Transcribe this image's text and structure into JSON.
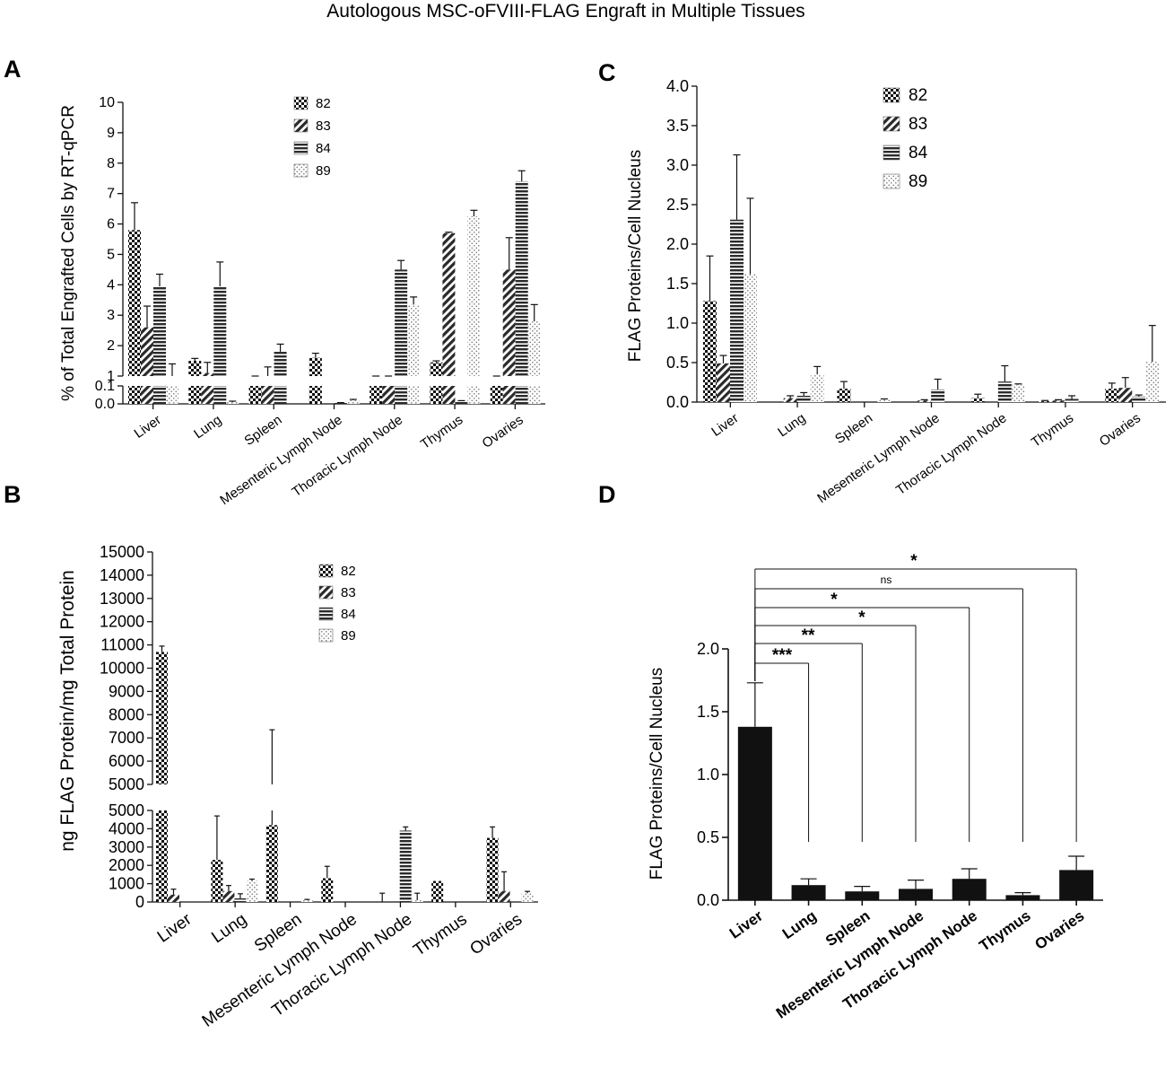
{
  "figure_title": "Autologous MSC-oFVIII-FLAG Engraft  in Multiple Tissues",
  "panel_labels": [
    "A",
    "B",
    "C",
    "D"
  ],
  "colors": {
    "ink": "#111111",
    "background": "#ffffff"
  },
  "chart_data": [
    {
      "panel": "A",
      "type": "bar",
      "ylabel": "% of Total Engrafted Cells by RT-qPCR",
      "categories": [
        "Liver",
        "Lung",
        "Spleen",
        "Mesenteric Lymph Node",
        "Thoracic Lymph Node",
        "Thymus",
        "Ovaries"
      ],
      "legend": [
        "82",
        "83",
        "84",
        "89"
      ],
      "yticks_upper": [
        "1",
        "2",
        "3",
        "4",
        "5",
        "6",
        "7",
        "8",
        "9",
        "10"
      ],
      "yticks_lower": [
        "0.0",
        "0.1"
      ],
      "axis_break": [
        0.1,
        1
      ],
      "ylim": [
        0,
        10
      ],
      "series": [
        {
          "name": "82",
          "pattern": "checker",
          "values": [
            5.8,
            1.5,
            0.8,
            1.6,
            0.7,
            1.45,
            0.55
          ],
          "errors": [
            0.9,
            0.08,
            0.05,
            0.15,
            0.05,
            0.05,
            0.05
          ]
        },
        {
          "name": "83",
          "pattern": "diagonal",
          "values": [
            2.6,
            1.1,
            1.0,
            0.0,
            0.15,
            5.7,
            4.5
          ],
          "errors": [
            0.7,
            0.35,
            0.3,
            0,
            0.03,
            0.03,
            1.05
          ]
        },
        {
          "name": "84",
          "pattern": "horizontal",
          "values": [
            3.95,
            3.95,
            1.8,
            0.005,
            4.5,
            0.015,
            7.4
          ],
          "errors": [
            0.4,
            0.8,
            0.25,
            0.002,
            0.3,
            0.003,
            0.35
          ]
        },
        {
          "name": "89",
          "pattern": "dots",
          "values": [
            1.0,
            0.01,
            0.0,
            0.02,
            3.35,
            6.25,
            2.8
          ],
          "errors": [
            0.4,
            0.005,
            0,
            0.005,
            0.25,
            0.2,
            0.55
          ]
        }
      ]
    },
    {
      "panel": "B",
      "type": "bar",
      "ylabel": "ng FLAG Protein/mg Total Protein",
      "categories": [
        "Liver",
        "Lung",
        "Spleen",
        "Mesenteric Lymph Node",
        "Thoracic Lymph Node",
        "Thymus",
        "Ovaries"
      ],
      "legend": [
        "82",
        "83",
        "84",
        "89"
      ],
      "yticks_upper": [
        "5000",
        "6000",
        "7000",
        "8000",
        "9000",
        "10000",
        "11000",
        "12000",
        "13000",
        "14000",
        "15000"
      ],
      "yticks_lower": [
        "0",
        "1000",
        "2000",
        "3000",
        "4000",
        "5000"
      ],
      "axis_break": [
        5000,
        5000
      ],
      "ylim": [
        0,
        15000
      ],
      "series": [
        {
          "name": "82",
          "pattern": "checker",
          "values": [
            10700,
            2300,
            4200,
            1300,
            0,
            1150,
            3500
          ],
          "errors": [
            250,
            2400,
            3150,
            650,
            480,
            0,
            600
          ]
        },
        {
          "name": "83",
          "pattern": "diagonal",
          "values": [
            400,
            600,
            0,
            0,
            0,
            0,
            600
          ],
          "errors": [
            300,
            300,
            0,
            0,
            0,
            0,
            1050
          ]
        },
        {
          "name": "84",
          "pattern": "horizontal",
          "values": [
            0,
            200,
            0,
            0,
            3900,
            0,
            0
          ],
          "errors": [
            0,
            250,
            0,
            0,
            200,
            0,
            0
          ]
        },
        {
          "name": "89",
          "pattern": "dots",
          "values": [
            0,
            1150,
            100,
            0,
            100,
            0,
            480
          ],
          "errors": [
            0,
            100,
            40,
            0,
            380,
            0,
            100
          ]
        }
      ]
    },
    {
      "panel": "C",
      "type": "bar",
      "ylabel": "FLAG Proteins/Cell Nucleus",
      "categories": [
        "Liver",
        "Lung",
        "Spleen",
        "Mesenteric Lymph Node",
        "Thoracic Lymph Node",
        "Thymus",
        "Ovaries"
      ],
      "legend": [
        "82",
        "83",
        "84",
        "89"
      ],
      "yticks": [
        "0.0",
        "0.5",
        "1.0",
        "1.5",
        "2.0",
        "2.5",
        "3.0",
        "3.5",
        "4.0"
      ],
      "ylim": [
        0,
        4.0
      ],
      "series": [
        {
          "name": "82",
          "pattern": "checker",
          "values": [
            1.28,
            0.0,
            0.17,
            0.0,
            0.05,
            0.01,
            0.17
          ],
          "errors": [
            0.57,
            0,
            0.09,
            0,
            0.05,
            0.01,
            0.07
          ]
        },
        {
          "name": "83",
          "pattern": "diagonal",
          "values": [
            0.49,
            0.05,
            0.0,
            0.02,
            0.0,
            0.02,
            0.18
          ],
          "errors": [
            0.1,
            0.03,
            0,
            0.01,
            0,
            0.01,
            0.13
          ]
        },
        {
          "name": "84",
          "pattern": "horizontal",
          "values": [
            2.31,
            0.08,
            0.0,
            0.16,
            0.26,
            0.04,
            0.07
          ],
          "errors": [
            0.82,
            0.04,
            0,
            0.13,
            0.2,
            0.04,
            0.02
          ]
        },
        {
          "name": "89",
          "pattern": "dots",
          "values": [
            1.62,
            0.35,
            0.03,
            0.0,
            0.22,
            0.0,
            0.51
          ],
          "errors": [
            0.96,
            0.1,
            0.01,
            0,
            0.01,
            0,
            0.46
          ]
        }
      ]
    },
    {
      "panel": "D",
      "type": "bar",
      "ylabel": "FLAG Proteins/Cell Nucleus",
      "categories": [
        "Liver",
        "Lung",
        "Spleen",
        "Mesenteric Lymph Node",
        "Thoracic Lymph Node",
        "Thymus",
        "Ovaries"
      ],
      "yticks": [
        "0.0",
        "0.5",
        "1.0",
        "1.5",
        "2.0"
      ],
      "ylim": [
        0,
        2.0
      ],
      "values": [
        1.38,
        0.12,
        0.07,
        0.09,
        0.17,
        0.04,
        0.24
      ],
      "errors": [
        0.35,
        0.05,
        0.04,
        0.07,
        0.08,
        0.02,
        0.11
      ],
      "significance": [
        {
          "from": "Liver",
          "to": "Lung",
          "label": "***"
        },
        {
          "from": "Liver",
          "to": "Spleen",
          "label": "**"
        },
        {
          "from": "Liver",
          "to": "Mesenteric Lymph Node",
          "label": "*"
        },
        {
          "from": "Liver",
          "to": "Thoracic Lymph Node",
          "label": "*"
        },
        {
          "from": "Liver",
          "to": "Thymus",
          "label": "ns"
        },
        {
          "from": "Liver",
          "to": "Ovaries",
          "label": "*"
        }
      ]
    }
  ]
}
